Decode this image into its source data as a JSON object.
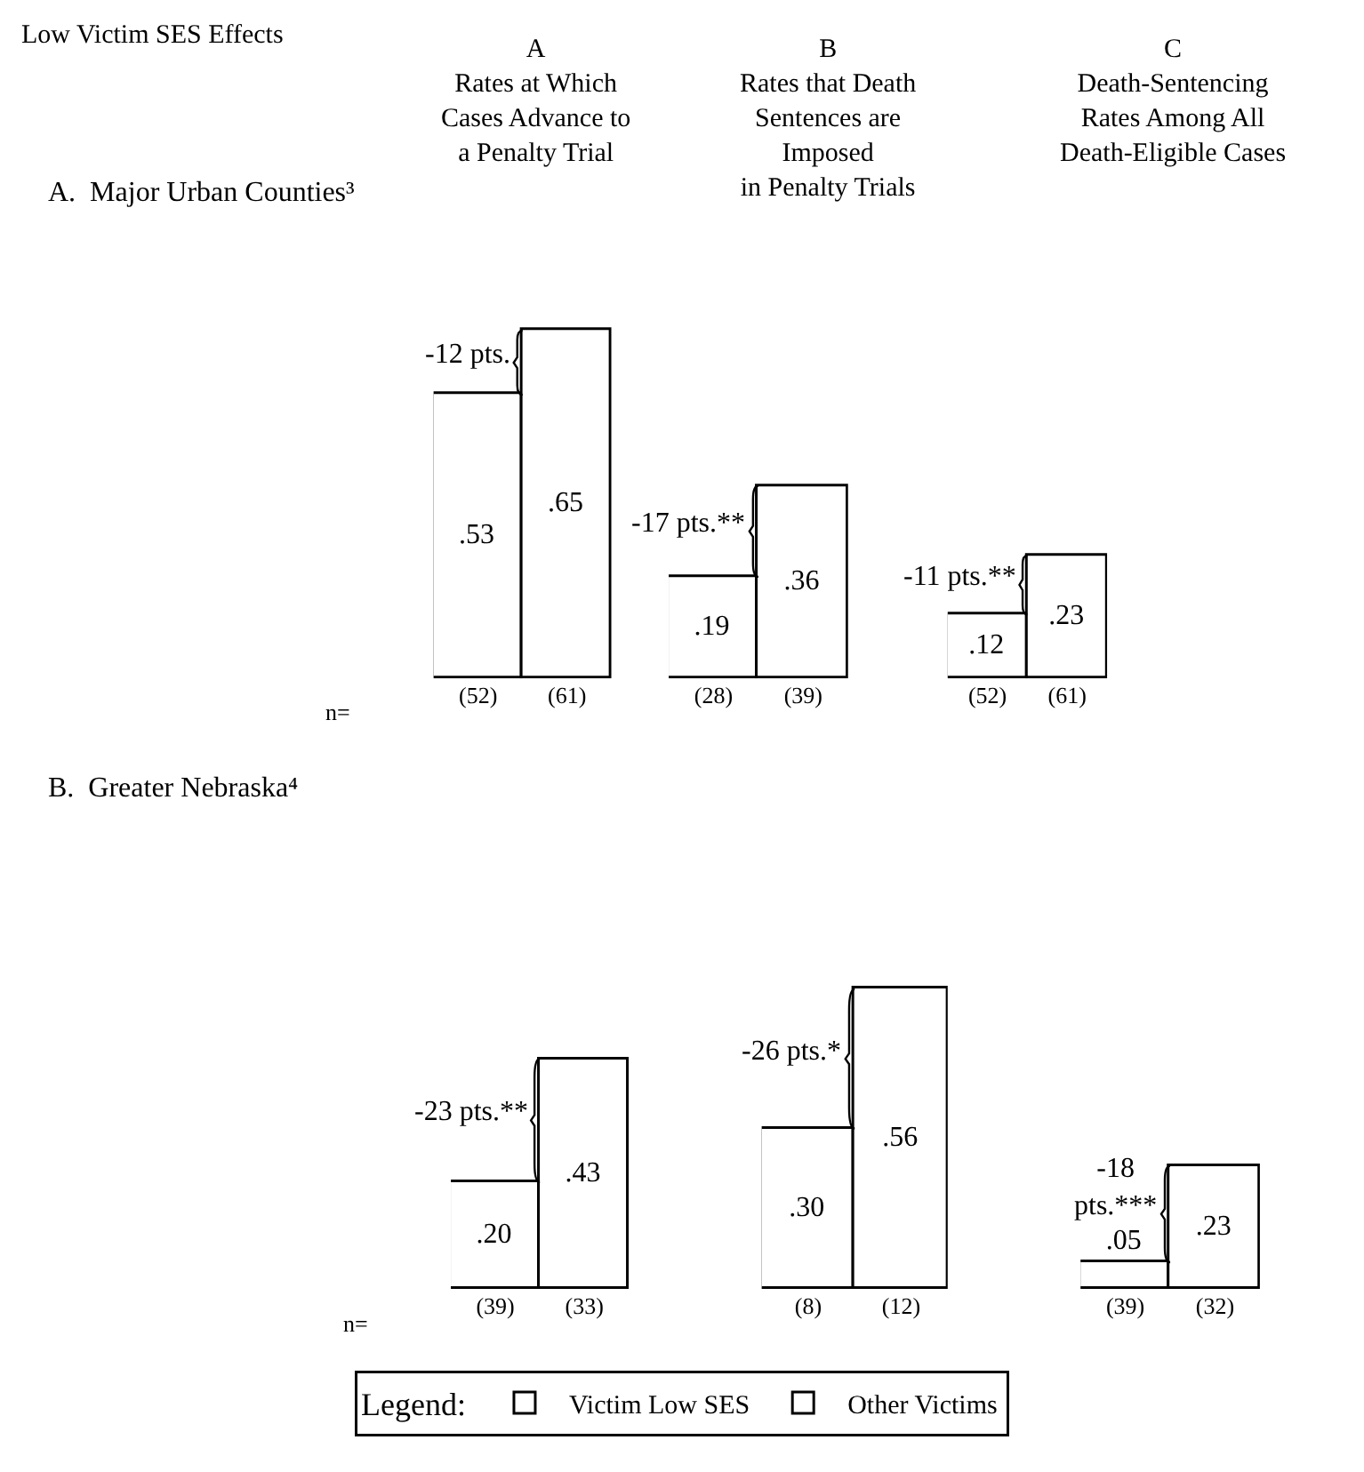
{
  "chart_data": [
    {
      "type": "bar",
      "title": "A\nRates at Which\nCases Advance to\na Penalty Trial",
      "subtitle": "A.  Major Urban Counties³",
      "xlabel": "n=",
      "categories": [
        "(52)",
        "(61)"
      ],
      "series": [
        {
          "name": "Victim Low SES",
          "color": "#ffffff",
          "values": [
            0.53,
            null
          ],
          "value_labels": [
            ".53",
            null
          ]
        },
        {
          "name": "Other Victims",
          "color": "#ffffff",
          "values": [
            null,
            0.65
          ],
          "value_labels": [
            null,
            ".65"
          ]
        }
      ],
      "annotations": [
        "Low Victim SES Effects",
        "-12 pts."
      ],
      "legend": "bottom",
      "legend_title": "Legend:"
    },
    {
      "type": "bar",
      "title": "B\nRates that Death\nSentences are\nImposed\nin Penalty Trials",
      "categories": [
        "(28)",
        "(39)"
      ],
      "series": [
        {
          "color": "#ffffff",
          "values": [
            0.19,
            null
          ],
          "value_labels": [
            ".19",
            null
          ]
        },
        {
          "color": "#ffffff",
          "values": [
            null,
            0.36
          ],
          "value_labels": [
            null,
            ".36"
          ]
        }
      ],
      "annotations": [
        "-17 pts.**"
      ]
    },
    {
      "type": "bar",
      "title": "C\nDeath-Sentencing\nRates Among All\nDeath-Eligible Cases",
      "categories": [
        "(52)",
        "(61)"
      ],
      "series": [
        {
          "color": "#ffffff",
          "values": [
            0.12,
            null
          ],
          "value_labels": [
            ".12",
            null
          ]
        },
        {
          "color": "#ffffff",
          "values": [
            null,
            0.23
          ],
          "value_labels": [
            null,
            ".23"
          ]
        }
      ],
      "annotations": [
        "-11 pts.**"
      ]
    },
    {
      "type": "bar",
      "subtitle": "B.  Greater Nebraska⁴",
      "xlabel": "n=",
      "categories": [
        "(39)",
        "(33)"
      ],
      "series": [
        {
          "color": "#ffffff",
          "values": [
            0.2,
            null
          ],
          "value_labels": [
            ".20",
            null
          ]
        },
        {
          "color": "#ffffff",
          "values": [
            null,
            0.43
          ],
          "value_labels": [
            null,
            ".43"
          ]
        }
      ],
      "annotations": [
        "-23 pts.**"
      ]
    },
    {
      "type": "bar",
      "categories": [
        "(8)",
        "(12)"
      ],
      "series": [
        {
          "color": "#ffffff",
          "values": [
            0.3,
            null
          ],
          "value_labels": [
            ".30",
            null
          ]
        },
        {
          "color": "#ffffff",
          "values": [
            null,
            0.56
          ],
          "value_labels": [
            null,
            ".56"
          ]
        }
      ],
      "annotations": [
        "-26 pts.*"
      ]
    },
    {
      "type": "bar",
      "categories": [
        "(39)",
        "(32)"
      ],
      "series": [
        {
          "color": "#ffffff",
          "values": [
            0.05,
            null
          ],
          "value_labels": [
            ".05",
            null
          ]
        },
        {
          "color": "#ffffff",
          "values": [
            null,
            0.23
          ],
          "value_labels": [
            null,
            ".23"
          ]
        }
      ],
      "annotations": [
        "-18\npts.***"
      ]
    }
  ]
}
